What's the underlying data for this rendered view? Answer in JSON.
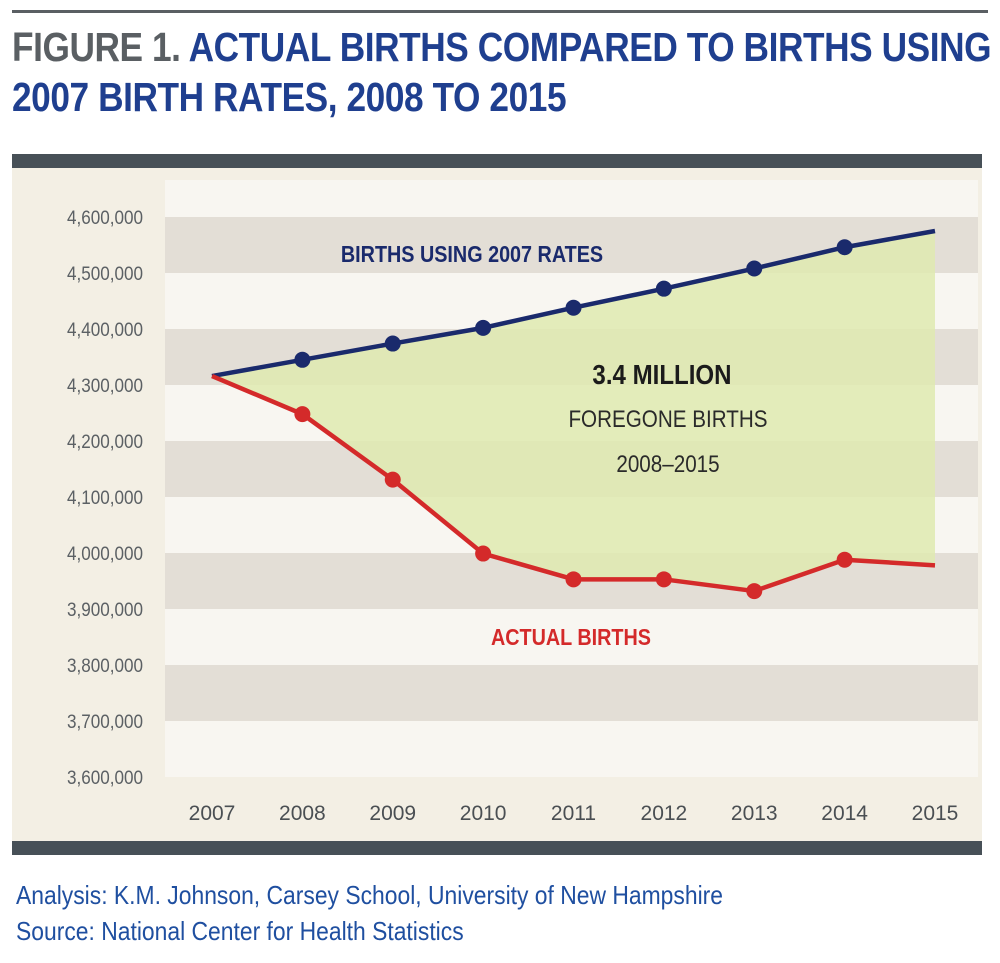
{
  "title": {
    "prefix": "FIGURE 1.",
    "main": "ACTUAL BIRTHS COMPARED TO BIRTHS USING",
    "line2": "2007 BIRTH RATES, 2008 TO 2015"
  },
  "footer": {
    "analysis": "Analysis: K.M. Johnson, Carsey School, University of New Hampshire",
    "source": "Source: National Center for Health Statistics"
  },
  "colors": {
    "title_prefix": "#5a5f63",
    "title_main": "#1f3f8f",
    "series_2007_rates": "#1a2a6c",
    "series_actual": "#d42a2a",
    "shaded_area": "#dfeab0",
    "band_light": "#f8f6f1",
    "band_dark": "#e3ded6"
  },
  "chart_data": {
    "type": "line",
    "x": [
      "2007",
      "2008",
      "2009",
      "2010",
      "2011",
      "2012",
      "2013",
      "2014",
      "2015"
    ],
    "ylim": [
      3600000,
      4600000
    ],
    "yticks": [
      "3,600,000",
      "3,700,000",
      "3,800,000",
      "3,900,000",
      "4,000,000",
      "4,100,000",
      "4,200,000",
      "4,300,000",
      "4,400,000",
      "4,500,000",
      "4,600,000"
    ],
    "ytick_values": [
      3600000,
      3700000,
      3800000,
      3900000,
      4000000,
      4100000,
      4200000,
      4300000,
      4400000,
      4500000,
      4600000
    ],
    "series": [
      {
        "name": "BIRTHS USING 2007 RATES",
        "values": [
          4316000,
          4345000,
          4374000,
          4402000,
          4438000,
          4472000,
          4508000,
          4546000,
          4575000
        ],
        "markers": [
          false,
          true,
          true,
          true,
          true,
          true,
          true,
          true,
          false
        ]
      },
      {
        "name": "ACTUAL BIRTHS",
        "values": [
          4316000,
          4248000,
          4131000,
          3999000,
          3953000,
          3953000,
          3932000,
          3988000,
          3978000
        ],
        "markers": [
          false,
          true,
          true,
          true,
          true,
          true,
          true,
          true,
          false
        ]
      }
    ],
    "annotation": {
      "headline": "3.4 MILLION",
      "line1": "FOREGONE BIRTHS",
      "line2": "2008–2015"
    },
    "grid": false,
    "legend": "inline labels"
  }
}
